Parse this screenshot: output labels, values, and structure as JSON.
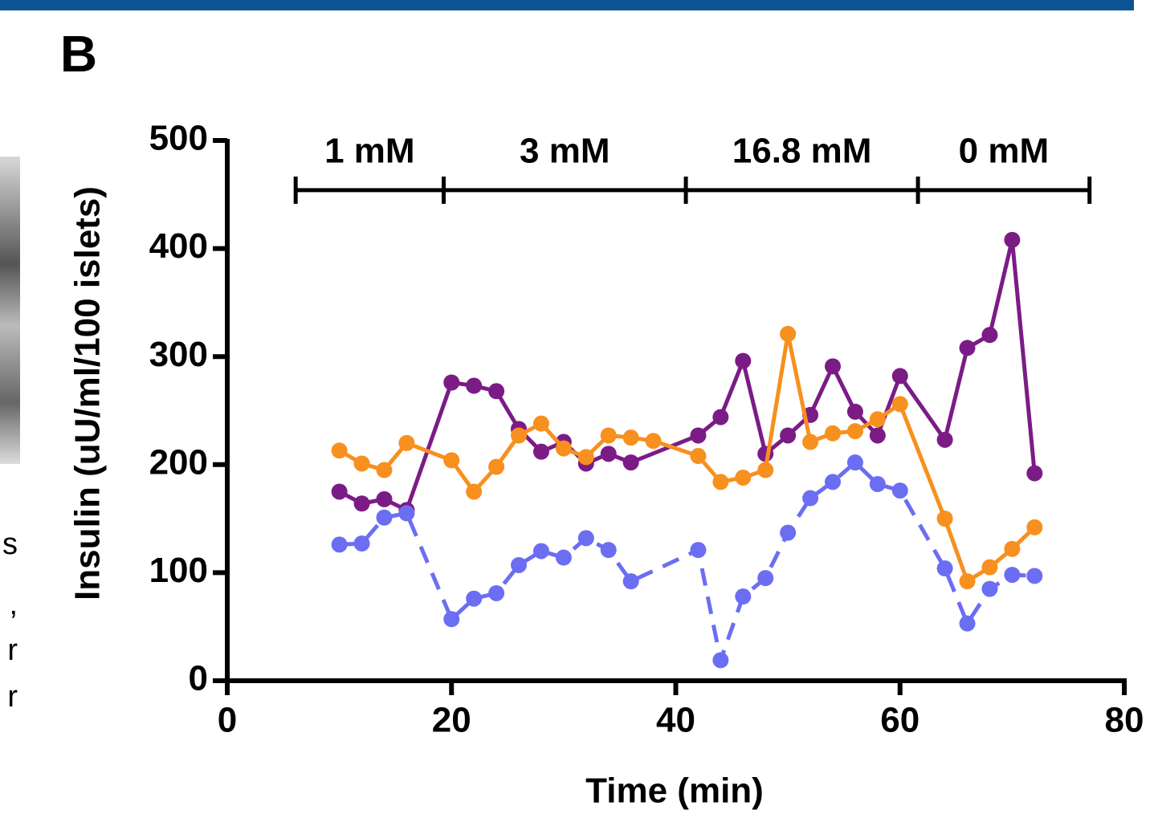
{
  "panel_label": "B",
  "side_text": [
    "s",
    ",",
    "r",
    "r"
  ],
  "chart_data": {
    "type": "line",
    "x_label": "Time (min)",
    "y_label": "Insulin  (uU/ml/100 islets)",
    "xlim": [
      0,
      80
    ],
    "xticks": [
      0,
      20,
      40,
      60,
      80
    ],
    "ylim": [
      0,
      500
    ],
    "yticks": [
      0,
      100,
      200,
      300,
      400,
      500
    ],
    "phases": {
      "boundaries": [
        6.1,
        19.3,
        40.9,
        61.6,
        76.9
      ],
      "level": 454,
      "labels": [
        "1 mM",
        "3 mM",
        "16.8 mM",
        "0 mM"
      ]
    },
    "series": [
      {
        "color": "#7b1c86",
        "dashed": false,
        "x": [
          10,
          12,
          14,
          16,
          20,
          22,
          24,
          26,
          28,
          30,
          32,
          34,
          36,
          42,
          44,
          46,
          48,
          50,
          52,
          54,
          56,
          58,
          60,
          64,
          66,
          68,
          70,
          72
        ],
        "values": [
          175,
          164,
          168,
          158,
          276,
          273,
          268,
          233,
          212,
          221,
          201,
          210,
          202,
          227,
          244,
          296,
          210,
          227,
          246,
          291,
          249,
          227,
          282,
          223,
          308,
          320,
          408,
          192
        ]
      },
      {
        "color": "#f7901e",
        "dashed": false,
        "x": [
          10,
          12,
          14,
          16,
          20,
          22,
          24,
          26,
          28,
          30,
          32,
          34,
          36,
          38,
          42,
          44,
          46,
          48,
          50,
          52,
          54,
          56,
          58,
          60,
          64,
          66,
          68,
          70,
          72
        ],
        "values": [
          213,
          201,
          195,
          220,
          204,
          175,
          198,
          227,
          238,
          215,
          207,
          227,
          225,
          222,
          208,
          184,
          188,
          195,
          321,
          221,
          229,
          231,
          242,
          256,
          150,
          92,
          105,
          122,
          142
        ]
      },
      {
        "color": "#6b6ef2",
        "dashed": true,
        "x": [
          10,
          12,
          14,
          16,
          20,
          22,
          24,
          26,
          28,
          30,
          32,
          34,
          36,
          42,
          44,
          46,
          48,
          50,
          52,
          54,
          56,
          58,
          60,
          64,
          66,
          68,
          70,
          72
        ],
        "values": [
          126,
          127,
          151,
          155,
          57,
          76,
          81,
          107,
          120,
          114,
          132,
          121,
          92,
          121,
          19,
          78,
          95,
          137,
          169,
          184,
          202,
          182,
          176,
          104,
          53,
          85,
          98,
          97
        ]
      }
    ]
  }
}
